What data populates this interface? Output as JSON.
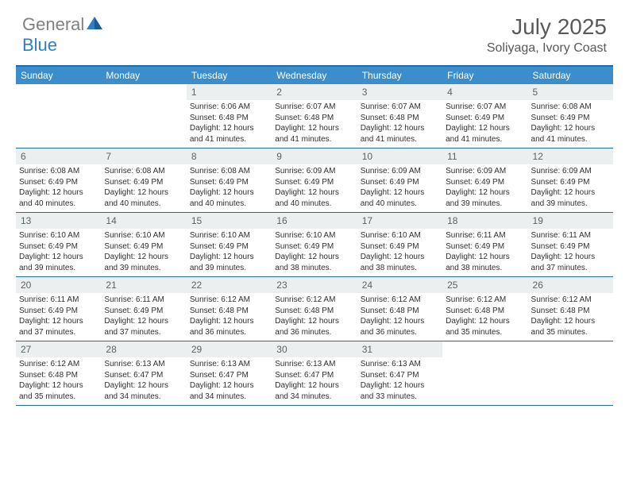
{
  "brand": {
    "part1": "General",
    "part2": "Blue"
  },
  "title": {
    "month": "July 2025",
    "location": "Soliyaga, Ivory Coast"
  },
  "colors": {
    "headerBlue": "#3c8dcc",
    "ruleBlue": "#246aa8",
    "numBg": "#eceff0",
    "grayText": "#606060"
  },
  "dayNames": [
    "Sunday",
    "Monday",
    "Tuesday",
    "Wednesday",
    "Thursday",
    "Friday",
    "Saturday"
  ],
  "weeks": [
    [
      {
        "n": "",
        "sr": "",
        "ss": "",
        "dl": ""
      },
      {
        "n": "",
        "sr": "",
        "ss": "",
        "dl": ""
      },
      {
        "n": "1",
        "sr": "6:06 AM",
        "ss": "6:48 PM",
        "dl": "12 hours and 41 minutes."
      },
      {
        "n": "2",
        "sr": "6:07 AM",
        "ss": "6:48 PM",
        "dl": "12 hours and 41 minutes."
      },
      {
        "n": "3",
        "sr": "6:07 AM",
        "ss": "6:48 PM",
        "dl": "12 hours and 41 minutes."
      },
      {
        "n": "4",
        "sr": "6:07 AM",
        "ss": "6:49 PM",
        "dl": "12 hours and 41 minutes."
      },
      {
        "n": "5",
        "sr": "6:08 AM",
        "ss": "6:49 PM",
        "dl": "12 hours and 41 minutes."
      }
    ],
    [
      {
        "n": "6",
        "sr": "6:08 AM",
        "ss": "6:49 PM",
        "dl": "12 hours and 40 minutes."
      },
      {
        "n": "7",
        "sr": "6:08 AM",
        "ss": "6:49 PM",
        "dl": "12 hours and 40 minutes."
      },
      {
        "n": "8",
        "sr": "6:08 AM",
        "ss": "6:49 PM",
        "dl": "12 hours and 40 minutes."
      },
      {
        "n": "9",
        "sr": "6:09 AM",
        "ss": "6:49 PM",
        "dl": "12 hours and 40 minutes."
      },
      {
        "n": "10",
        "sr": "6:09 AM",
        "ss": "6:49 PM",
        "dl": "12 hours and 40 minutes."
      },
      {
        "n": "11",
        "sr": "6:09 AM",
        "ss": "6:49 PM",
        "dl": "12 hours and 39 minutes."
      },
      {
        "n": "12",
        "sr": "6:09 AM",
        "ss": "6:49 PM",
        "dl": "12 hours and 39 minutes."
      }
    ],
    [
      {
        "n": "13",
        "sr": "6:10 AM",
        "ss": "6:49 PM",
        "dl": "12 hours and 39 minutes."
      },
      {
        "n": "14",
        "sr": "6:10 AM",
        "ss": "6:49 PM",
        "dl": "12 hours and 39 minutes."
      },
      {
        "n": "15",
        "sr": "6:10 AM",
        "ss": "6:49 PM",
        "dl": "12 hours and 39 minutes."
      },
      {
        "n": "16",
        "sr": "6:10 AM",
        "ss": "6:49 PM",
        "dl": "12 hours and 38 minutes."
      },
      {
        "n": "17",
        "sr": "6:10 AM",
        "ss": "6:49 PM",
        "dl": "12 hours and 38 minutes."
      },
      {
        "n": "18",
        "sr": "6:11 AM",
        "ss": "6:49 PM",
        "dl": "12 hours and 38 minutes."
      },
      {
        "n": "19",
        "sr": "6:11 AM",
        "ss": "6:49 PM",
        "dl": "12 hours and 37 minutes."
      }
    ],
    [
      {
        "n": "20",
        "sr": "6:11 AM",
        "ss": "6:49 PM",
        "dl": "12 hours and 37 minutes."
      },
      {
        "n": "21",
        "sr": "6:11 AM",
        "ss": "6:49 PM",
        "dl": "12 hours and 37 minutes."
      },
      {
        "n": "22",
        "sr": "6:12 AM",
        "ss": "6:48 PM",
        "dl": "12 hours and 36 minutes."
      },
      {
        "n": "23",
        "sr": "6:12 AM",
        "ss": "6:48 PM",
        "dl": "12 hours and 36 minutes."
      },
      {
        "n": "24",
        "sr": "6:12 AM",
        "ss": "6:48 PM",
        "dl": "12 hours and 36 minutes."
      },
      {
        "n": "25",
        "sr": "6:12 AM",
        "ss": "6:48 PM",
        "dl": "12 hours and 35 minutes."
      },
      {
        "n": "26",
        "sr": "6:12 AM",
        "ss": "6:48 PM",
        "dl": "12 hours and 35 minutes."
      }
    ],
    [
      {
        "n": "27",
        "sr": "6:12 AM",
        "ss": "6:48 PM",
        "dl": "12 hours and 35 minutes."
      },
      {
        "n": "28",
        "sr": "6:13 AM",
        "ss": "6:47 PM",
        "dl": "12 hours and 34 minutes."
      },
      {
        "n": "29",
        "sr": "6:13 AM",
        "ss": "6:47 PM",
        "dl": "12 hours and 34 minutes."
      },
      {
        "n": "30",
        "sr": "6:13 AM",
        "ss": "6:47 PM",
        "dl": "12 hours and 34 minutes."
      },
      {
        "n": "31",
        "sr": "6:13 AM",
        "ss": "6:47 PM",
        "dl": "12 hours and 33 minutes."
      },
      {
        "n": "",
        "sr": "",
        "ss": "",
        "dl": ""
      },
      {
        "n": "",
        "sr": "",
        "ss": "",
        "dl": ""
      }
    ]
  ],
  "labels": {
    "sunrise": "Sunrise:",
    "sunset": "Sunset:",
    "daylight": "Daylight:"
  }
}
